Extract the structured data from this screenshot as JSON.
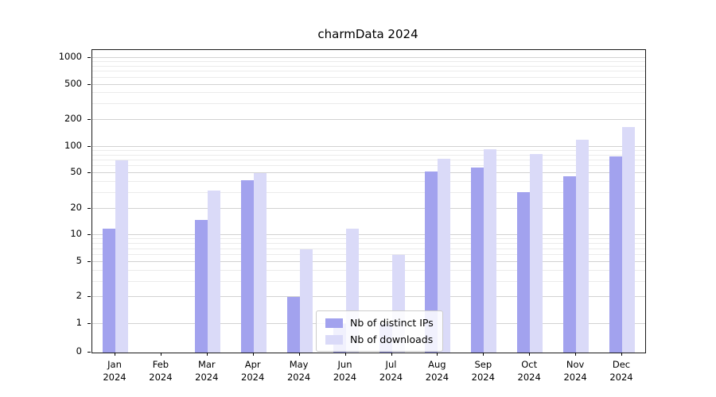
{
  "chart_data": {
    "type": "bar",
    "title": "charmData 2024",
    "categories": [
      "Jan",
      "Feb",
      "Mar",
      "Apr",
      "May",
      "Jun",
      "Jul",
      "Aug",
      "Sep",
      "Oct",
      "Nov",
      "Dec"
    ],
    "year": "2024",
    "series": [
      {
        "name": "Nb of distinct IPs",
        "color": "#a2a2ee",
        "values": [
          12,
          0,
          15,
          42,
          2,
          1,
          1,
          52,
          58,
          31,
          46,
          77
        ]
      },
      {
        "name": "Nb of downloads",
        "color": "#dadaf8",
        "values": [
          70,
          0,
          32,
          50,
          7,
          12,
          6,
          73,
          93,
          82,
          120,
          165
        ]
      }
    ],
    "yticks": [
      0,
      1,
      2,
      5,
      10,
      20,
      50,
      100,
      200,
      500,
      1000
    ],
    "yscale": "symlog",
    "ylim": [
      0,
      1228
    ],
    "xlabel": "",
    "ylabel": "",
    "grid": true,
    "legend_position": "lower center"
  }
}
